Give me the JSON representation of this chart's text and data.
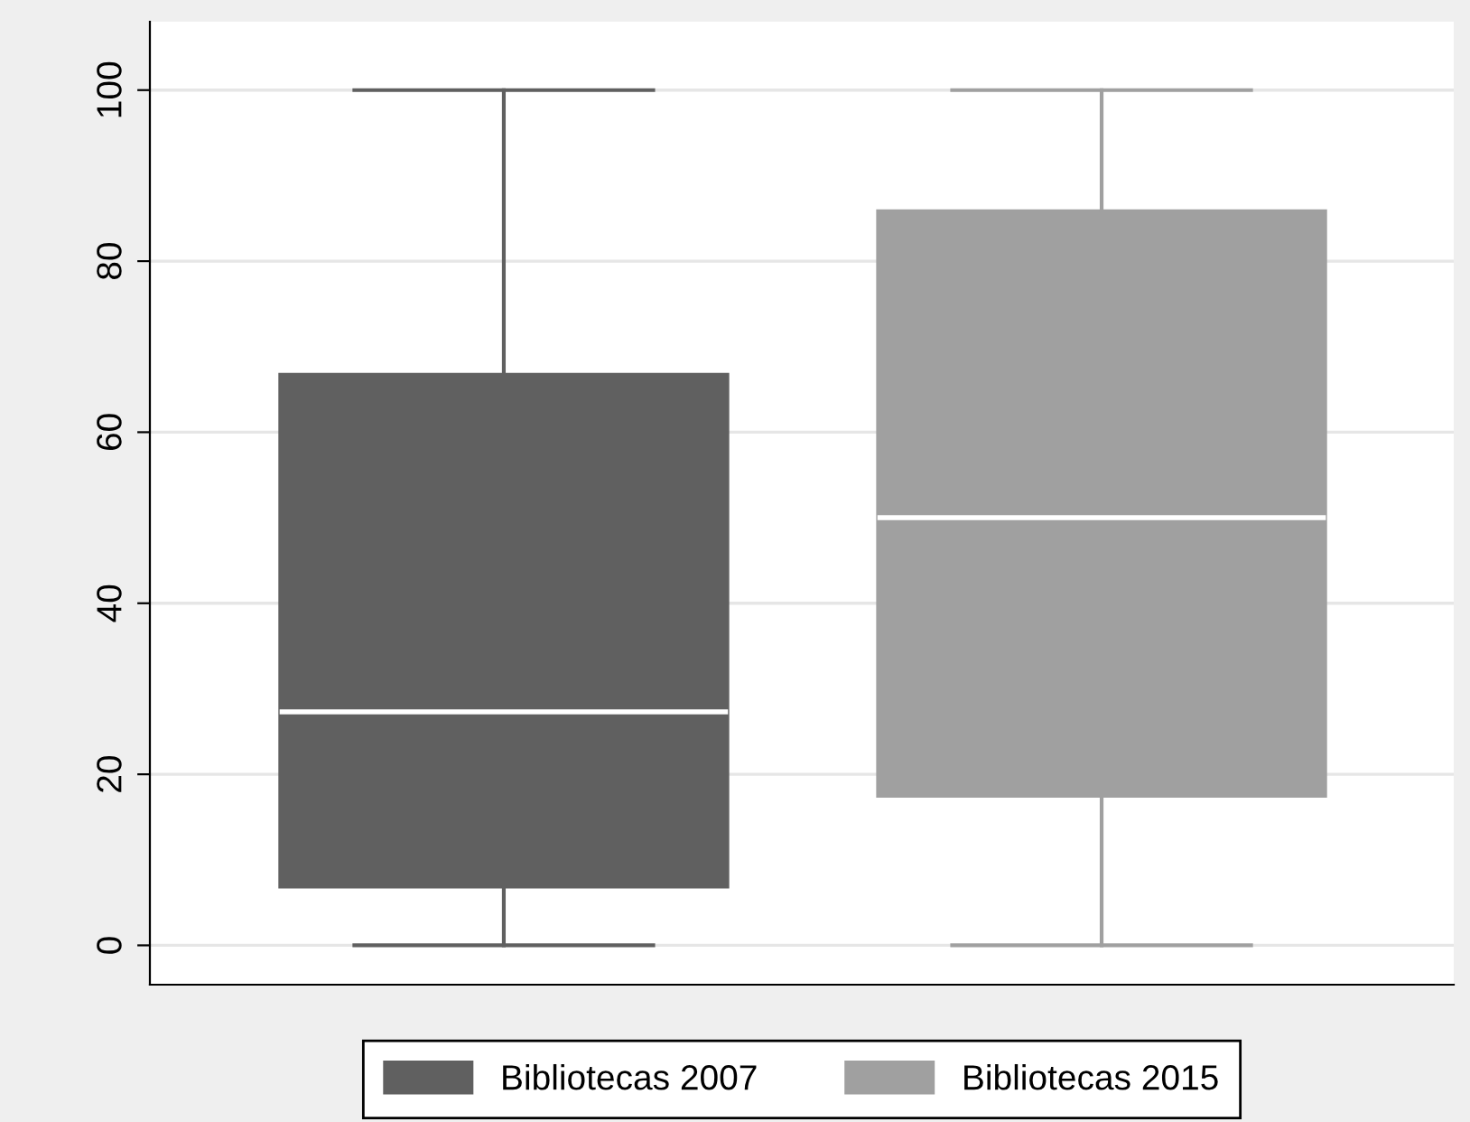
{
  "chart_data": {
    "type": "box",
    "categories": [
      null
    ],
    "series": [
      {
        "name": "Bibliotecas 2007",
        "color": "#606060",
        "boxes": [
          {
            "low": 0,
            "q1": 6.8,
            "median": 27.3,
            "q3": 66.8,
            "high": 100
          }
        ]
      },
      {
        "name": "Bibliotecas 2015",
        "color": "#a0a0a0",
        "boxes": [
          {
            "low": 0,
            "q1": 17.4,
            "median": 50,
            "q3": 85.9,
            "high": 100
          }
        ]
      }
    ],
    "ylim": [
      -4.6,
      108
    ],
    "yticks": [
      0,
      20,
      40,
      60,
      80,
      100
    ],
    "grid": "y",
    "legend": "bottom",
    "tick_labels": "y"
  }
}
